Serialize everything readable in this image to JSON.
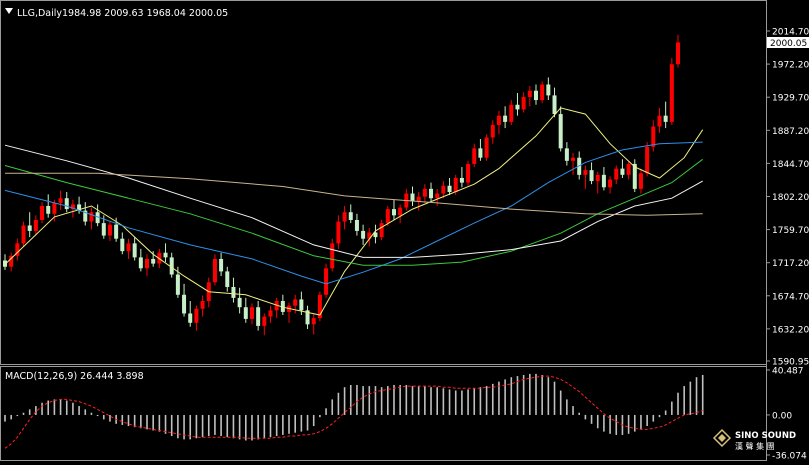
{
  "header": {
    "symbol": "LLG,Daily",
    "ohlc": "1984.98 2009.63 1968.04 2000.05"
  },
  "price_axis": {
    "ticks": [
      "2014.70",
      "1972.20",
      "1929.70",
      "1887.20",
      "1844.70",
      "1802.20",
      "1759.70",
      "1717.20",
      "1674.70",
      "1632.20",
      "1590.95"
    ],
    "current_price_label": "2000.05"
  },
  "macd": {
    "label": "MACD(12,26,9) 26.444 3.898",
    "ticks": [
      "40.487",
      "0.00",
      "-36.074"
    ]
  },
  "watermark": {
    "line1": "SINO SOUND",
    "line2": "漢 聲 集 團"
  },
  "colors": {
    "background": "#000000",
    "bull_candle": "#ff0000",
    "bear_candle": "#c8f0c8",
    "ma_yellow": "#f0f080",
    "ma_blue": "#2e8fe8",
    "ma_green": "#3cc83c",
    "ma_white": "#f5f5f5",
    "ma_tan": "#c8b48c",
    "macd_hist": "#c0c0c0",
    "macd_signal": "#ff2020",
    "axis_text": "#ffffff"
  },
  "chart_data": {
    "type": "candlestick",
    "ylim": [
      1590.95,
      2014.7
    ],
    "candles": [
      [
        1720,
        1728,
        1708,
        1712
      ],
      [
        1712,
        1730,
        1706,
        1726
      ],
      [
        1726,
        1748,
        1720,
        1742
      ],
      [
        1742,
        1770,
        1738,
        1765
      ],
      [
        1765,
        1782,
        1750,
        1758
      ],
      [
        1758,
        1778,
        1752,
        1772
      ],
      [
        1772,
        1795,
        1768,
        1790
      ],
      [
        1790,
        1805,
        1775,
        1780
      ],
      [
        1780,
        1798,
        1770,
        1794
      ],
      [
        1794,
        1810,
        1785,
        1800
      ],
      [
        1800,
        1808,
        1782,
        1786
      ],
      [
        1786,
        1798,
        1775,
        1792
      ],
      [
        1792,
        1802,
        1780,
        1784
      ],
      [
        1784,
        1795,
        1765,
        1770
      ],
      [
        1770,
        1788,
        1760,
        1782
      ],
      [
        1782,
        1792,
        1764,
        1768
      ],
      [
        1768,
        1778,
        1748,
        1752
      ],
      [
        1752,
        1770,
        1745,
        1766
      ],
      [
        1766,
        1775,
        1744,
        1748
      ],
      [
        1748,
        1756,
        1728,
        1732
      ],
      [
        1732,
        1748,
        1722,
        1742
      ],
      [
        1742,
        1750,
        1720,
        1724
      ],
      [
        1724,
        1735,
        1706,
        1710
      ],
      [
        1710,
        1728,
        1700,
        1722
      ],
      [
        1722,
        1732,
        1712,
        1716
      ],
      [
        1716,
        1735,
        1710,
        1730
      ],
      [
        1730,
        1742,
        1718,
        1724
      ],
      [
        1724,
        1730,
        1698,
        1702
      ],
      [
        1702,
        1712,
        1672,
        1676
      ],
      [
        1676,
        1690,
        1648,
        1652
      ],
      [
        1652,
        1668,
        1635,
        1640
      ],
      [
        1640,
        1662,
        1630,
        1658
      ],
      [
        1658,
        1675,
        1648,
        1668
      ],
      [
        1668,
        1698,
        1660,
        1692
      ],
      [
        1692,
        1728,
        1688,
        1722
      ],
      [
        1722,
        1730,
        1700,
        1706
      ],
      [
        1706,
        1712,
        1680,
        1686
      ],
      [
        1686,
        1698,
        1666,
        1672
      ],
      [
        1672,
        1685,
        1652,
        1660
      ],
      [
        1660,
        1672,
        1640,
        1645
      ],
      [
        1645,
        1665,
        1638,
        1660
      ],
      [
        1660,
        1668,
        1630,
        1636
      ],
      [
        1636,
        1652,
        1624,
        1648
      ],
      [
        1648,
        1662,
        1640,
        1656
      ],
      [
        1656,
        1672,
        1646,
        1668
      ],
      [
        1668,
        1676,
        1650,
        1654
      ],
      [
        1654,
        1666,
        1640,
        1662
      ],
      [
        1662,
        1676,
        1652,
        1670
      ],
      [
        1670,
        1680,
        1650,
        1656
      ],
      [
        1656,
        1662,
        1632,
        1638
      ],
      [
        1638,
        1652,
        1625,
        1646
      ],
      [
        1646,
        1680,
        1642,
        1676
      ],
      [
        1676,
        1716,
        1672,
        1710
      ],
      [
        1710,
        1748,
        1706,
        1742
      ],
      [
        1742,
        1778,
        1735,
        1770
      ],
      [
        1770,
        1790,
        1760,
        1782
      ],
      [
        1782,
        1792,
        1768,
        1772
      ],
      [
        1772,
        1780,
        1752,
        1758
      ],
      [
        1758,
        1766,
        1740,
        1748
      ],
      [
        1748,
        1762,
        1738,
        1756
      ],
      [
        1756,
        1766,
        1742,
        1750
      ],
      [
        1750,
        1772,
        1746,
        1768
      ],
      [
        1768,
        1790,
        1764,
        1786
      ],
      [
        1786,
        1798,
        1772,
        1778
      ],
      [
        1778,
        1792,
        1768,
        1788
      ],
      [
        1788,
        1812,
        1784,
        1806
      ],
      [
        1806,
        1815,
        1790,
        1796
      ],
      [
        1796,
        1808,
        1784,
        1802
      ],
      [
        1802,
        1818,
        1794,
        1812
      ],
      [
        1812,
        1820,
        1796,
        1800
      ],
      [
        1800,
        1812,
        1790,
        1806
      ],
      [
        1806,
        1822,
        1800,
        1816
      ],
      [
        1816,
        1826,
        1804,
        1808
      ],
      [
        1808,
        1830,
        1804,
        1826
      ],
      [
        1826,
        1840,
        1814,
        1820
      ],
      [
        1820,
        1848,
        1816,
        1844
      ],
      [
        1844,
        1870,
        1840,
        1864
      ],
      [
        1864,
        1876,
        1848,
        1852
      ],
      [
        1852,
        1882,
        1848,
        1878
      ],
      [
        1878,
        1900,
        1870,
        1894
      ],
      [
        1894,
        1912,
        1882,
        1906
      ],
      [
        1906,
        1918,
        1890,
        1898
      ],
      [
        1898,
        1926,
        1894,
        1920
      ],
      [
        1920,
        1935,
        1906,
        1914
      ],
      [
        1914,
        1936,
        1910,
        1930
      ],
      [
        1930,
        1944,
        1918,
        1938
      ],
      [
        1938,
        1946,
        1920,
        1926
      ],
      [
        1926,
        1950,
        1922,
        1946
      ],
      [
        1946,
        1955,
        1926,
        1932
      ],
      [
        1932,
        1942,
        1904,
        1908
      ],
      [
        1908,
        1918,
        1860,
        1864
      ],
      [
        1864,
        1872,
        1842,
        1848
      ],
      [
        1848,
        1858,
        1830,
        1852
      ],
      [
        1852,
        1860,
        1824,
        1830
      ],
      [
        1830,
        1842,
        1812,
        1836
      ],
      [
        1836,
        1846,
        1818,
        1822
      ],
      [
        1822,
        1834,
        1806,
        1830
      ],
      [
        1830,
        1840,
        1810,
        1814
      ],
      [
        1814,
        1828,
        1806,
        1824
      ],
      [
        1824,
        1842,
        1818,
        1838
      ],
      [
        1838,
        1850,
        1826,
        1830
      ],
      [
        1830,
        1848,
        1824,
        1844
      ],
      [
        1844,
        1850,
        1808,
        1812
      ],
      [
        1812,
        1838,
        1806,
        1832
      ],
      [
        1832,
        1872,
        1828,
        1866
      ],
      [
        1866,
        1900,
        1860,
        1892
      ],
      [
        1892,
        1916,
        1884,
        1906
      ],
      [
        1906,
        1924,
        1890,
        1898
      ],
      [
        1898,
        1980,
        1894,
        1972
      ],
      [
        1972,
        2009.63,
        1968.04,
        2000.05
      ]
    ],
    "moving_averages": [
      {
        "color_key": "ma_yellow",
        "points": [
          [
            0,
            1715
          ],
          [
            8,
            1776
          ],
          [
            14,
            1790
          ],
          [
            19,
            1765
          ],
          [
            24,
            1728
          ],
          [
            29,
            1700
          ],
          [
            33,
            1680
          ],
          [
            39,
            1676
          ],
          [
            45,
            1660
          ],
          [
            51,
            1650
          ],
          [
            55,
            1706
          ],
          [
            60,
            1758
          ],
          [
            66,
            1786
          ],
          [
            71,
            1802
          ],
          [
            76,
            1818
          ],
          [
            80,
            1838
          ],
          [
            86,
            1880
          ],
          [
            90,
            1916
          ],
          [
            94,
            1908
          ],
          [
            98,
            1870
          ],
          [
            102,
            1840
          ],
          [
            106,
            1826
          ],
          [
            110,
            1852
          ],
          [
            113,
            1888
          ]
        ]
      },
      {
        "color_key": "ma_blue",
        "points": [
          [
            0,
            1810
          ],
          [
            10,
            1790
          ],
          [
            20,
            1762
          ],
          [
            30,
            1740
          ],
          [
            40,
            1722
          ],
          [
            48,
            1700
          ],
          [
            52,
            1690
          ],
          [
            58,
            1705
          ],
          [
            64,
            1722
          ],
          [
            70,
            1745
          ],
          [
            76,
            1768
          ],
          [
            82,
            1790
          ],
          [
            88,
            1820
          ],
          [
            94,
            1846
          ],
          [
            100,
            1862
          ],
          [
            106,
            1870
          ],
          [
            113,
            1872
          ]
        ]
      },
      {
        "color_key": "ma_green",
        "points": [
          [
            0,
            1842
          ],
          [
            10,
            1820
          ],
          [
            20,
            1800
          ],
          [
            30,
            1780
          ],
          [
            40,
            1755
          ],
          [
            50,
            1726
          ],
          [
            58,
            1714
          ],
          [
            66,
            1714
          ],
          [
            74,
            1718
          ],
          [
            82,
            1732
          ],
          [
            90,
            1755
          ],
          [
            96,
            1780
          ],
          [
            102,
            1800
          ],
          [
            108,
            1820
          ],
          [
            113,
            1850
          ]
        ]
      },
      {
        "color_key": "ma_white",
        "points": [
          [
            0,
            1868
          ],
          [
            10,
            1848
          ],
          [
            20,
            1826
          ],
          [
            30,
            1800
          ],
          [
            40,
            1775
          ],
          [
            50,
            1740
          ],
          [
            58,
            1724
          ],
          [
            66,
            1724
          ],
          [
            74,
            1728
          ],
          [
            82,
            1734
          ],
          [
            90,
            1745
          ],
          [
            96,
            1770
          ],
          [
            102,
            1790
          ],
          [
            108,
            1800
          ],
          [
            113,
            1822
          ]
        ]
      },
      {
        "color_key": "ma_tan",
        "points": [
          [
            0,
            1832
          ],
          [
            15,
            1832
          ],
          [
            30,
            1825
          ],
          [
            45,
            1815
          ],
          [
            55,
            1803
          ],
          [
            70,
            1794
          ],
          [
            82,
            1786
          ],
          [
            94,
            1780
          ],
          [
            104,
            1778
          ],
          [
            113,
            1780
          ]
        ]
      }
    ],
    "macd_histogram": [
      -6,
      -4,
      -1,
      2,
      5,
      8,
      11,
      13,
      14,
      14,
      13,
      11,
      8,
      5,
      2,
      -1,
      -4,
      -6,
      -8,
      -9,
      -10,
      -11,
      -12,
      -13,
      -14,
      -15,
      -17,
      -19,
      -21,
      -22,
      -22,
      -21,
      -20,
      -19,
      -18,
      -19,
      -20,
      -21,
      -22,
      -23,
      -23,
      -22,
      -21,
      -20,
      -19,
      -18,
      -17,
      -16,
      -15,
      -14,
      -10,
      -2,
      6,
      14,
      20,
      25,
      27,
      27,
      26,
      26,
      26,
      25,
      26,
      27,
      27,
      27,
      26,
      26,
      26,
      25,
      25,
      24,
      23,
      22,
      22,
      23,
      24,
      25,
      26,
      28,
      30,
      32,
      34,
      35,
      36,
      37,
      37,
      36,
      34,
      30,
      22,
      14,
      8,
      2,
      -4,
      -8,
      -12,
      -15,
      -17,
      -18,
      -18,
      -17,
      -15,
      -13,
      -10,
      -6,
      -2,
      4,
      12,
      20,
      26,
      30,
      34,
      36
    ],
    "macd_signal": [
      -30,
      -26,
      -20,
      -12,
      -4,
      3,
      8,
      11,
      13,
      14,
      14,
      13,
      12,
      10,
      8,
      5,
      2,
      -1,
      -4,
      -6,
      -8,
      -10,
      -11,
      -12,
      -13,
      -14,
      -15,
      -16,
      -17,
      -18,
      -19,
      -20,
      -20,
      -20,
      -20,
      -20,
      -20,
      -20,
      -20,
      -21,
      -21,
      -21,
      -21,
      -21,
      -20,
      -20,
      -19,
      -19,
      -18,
      -18,
      -17,
      -15,
      -12,
      -8,
      -3,
      2,
      7,
      12,
      16,
      19,
      21,
      22,
      23,
      24,
      25,
      26,
      26,
      26,
      26,
      26,
      26,
      25,
      25,
      24,
      24,
      24,
      24,
      24,
      25,
      25,
      26,
      27,
      28,
      30,
      32,
      33,
      34,
      35,
      35,
      34,
      32,
      29,
      25,
      21,
      16,
      11,
      6,
      1,
      -3,
      -6,
      -9,
      -11,
      -12,
      -13,
      -13,
      -12,
      -11,
      -9,
      -6,
      -3,
      0,
      1,
      2,
      4
    ],
    "macd_ylim": [
      -36.074,
      40.487
    ]
  }
}
